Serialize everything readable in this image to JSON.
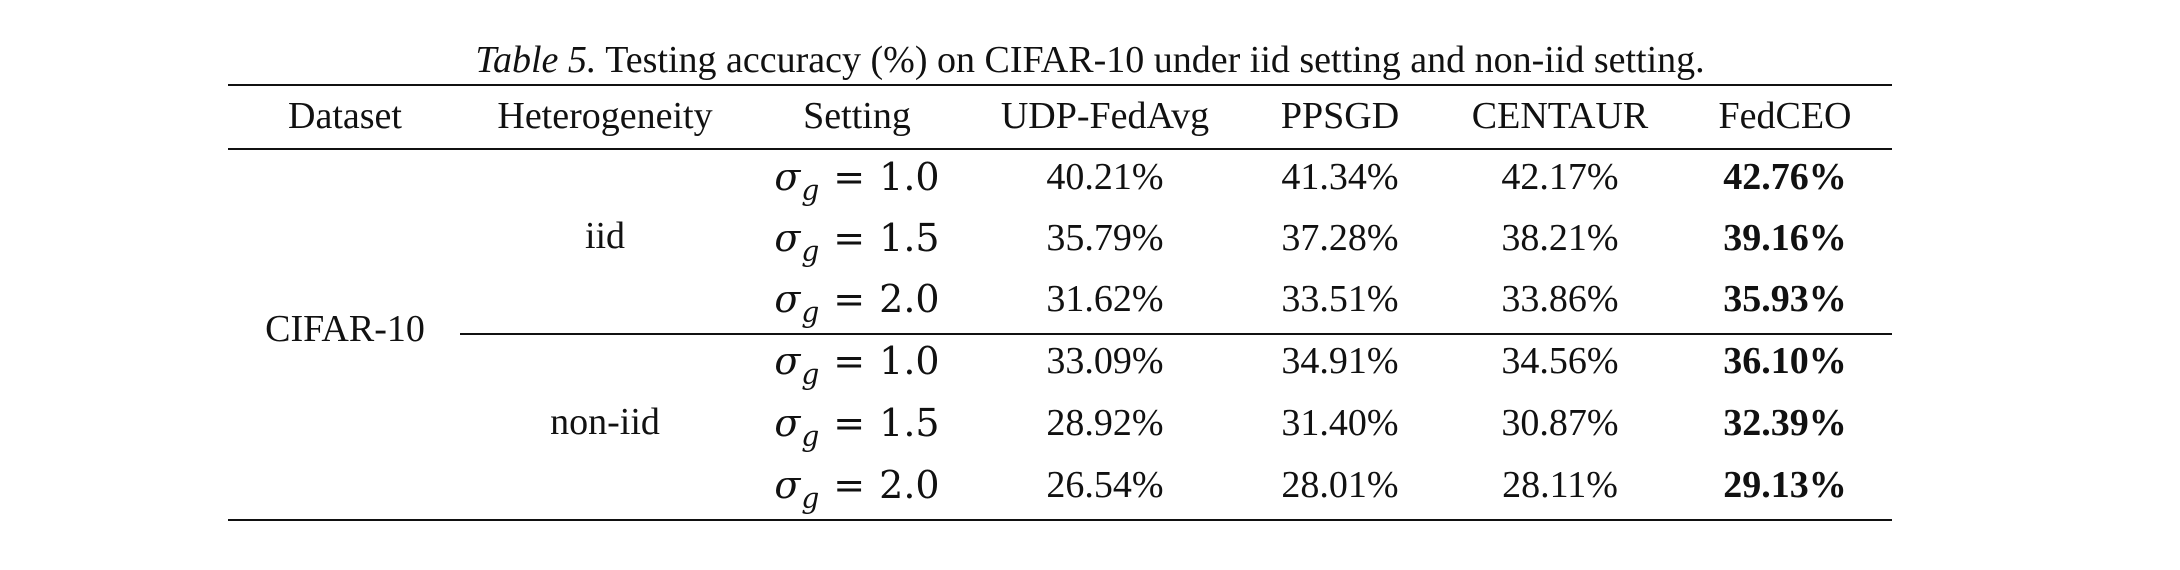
{
  "caption": {
    "label": "Table 5.",
    "text": " Testing accuracy (%) on CIFAR-10 under iid setting and non-iid setting."
  },
  "table": {
    "headers": [
      "Dataset",
      "Heterogeneity",
      "Setting",
      "UDP-FedAvg",
      "PPSGD",
      "CENTAUR",
      "FedCEO"
    ],
    "dataset": "CIFAR-10",
    "groups": [
      {
        "heterogeneity": "iid",
        "rows": [
          {
            "sigma": "σ",
            "sub": "g",
            "eq": "=",
            "value": "1.0",
            "udp": "40.21%",
            "ppsgd": "41.34%",
            "centaur": "42.17%",
            "fedceo": "42.76%"
          },
          {
            "sigma": "σ",
            "sub": "g",
            "eq": "=",
            "value": "1.5",
            "udp": "35.79%",
            "ppsgd": "37.28%",
            "centaur": "38.21%",
            "fedceo": "39.16%"
          },
          {
            "sigma": "σ",
            "sub": "g",
            "eq": "=",
            "value": "2.0",
            "udp": "31.62%",
            "ppsgd": "33.51%",
            "centaur": "33.86%",
            "fedceo": "35.93%"
          }
        ]
      },
      {
        "heterogeneity": "non-iid",
        "rows": [
          {
            "sigma": "σ",
            "sub": "g",
            "eq": "=",
            "value": "1.0",
            "udp": "33.09%",
            "ppsgd": "34.91%",
            "centaur": "34.56%",
            "fedceo": "36.10%"
          },
          {
            "sigma": "σ",
            "sub": "g",
            "eq": "=",
            "value": "1.5",
            "udp": "28.92%",
            "ppsgd": "31.40%",
            "centaur": "30.87%",
            "fedceo": "32.39%"
          },
          {
            "sigma": "σ",
            "sub": "g",
            "eq": "=",
            "value": "2.0",
            "udp": "26.54%",
            "ppsgd": "28.01%",
            "centaur": "28.11%",
            "fedceo": "29.13%"
          }
        ]
      }
    ]
  }
}
